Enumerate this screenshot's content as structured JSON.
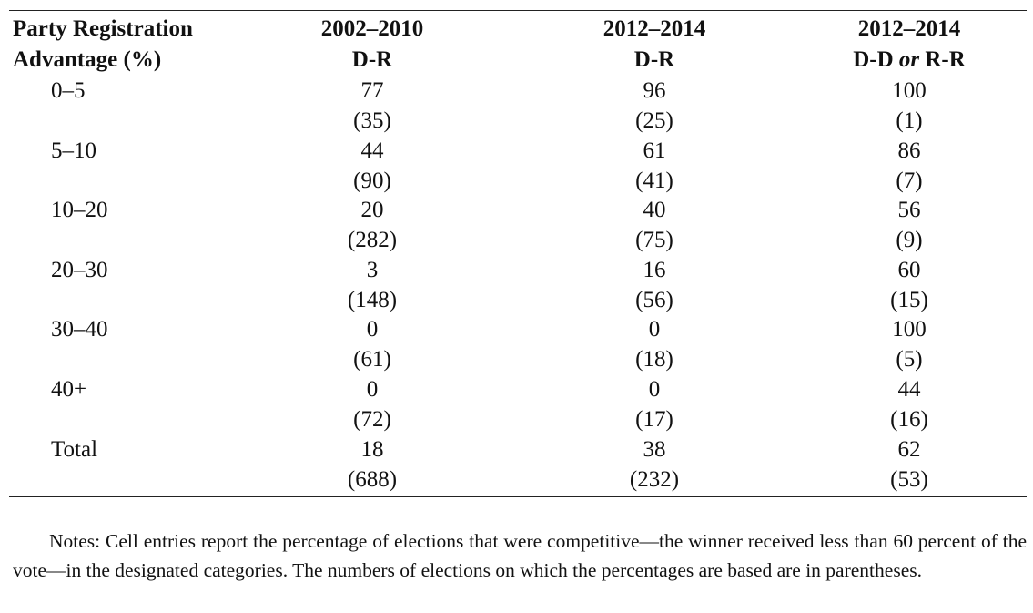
{
  "table": {
    "header": {
      "label_line1": "Party Registration",
      "label_line2": "Advantage (%)",
      "columns": [
        {
          "line1": "2002–2010",
          "line2": "D-R"
        },
        {
          "line1": "2012–2014",
          "line2": "D-R"
        },
        {
          "line1": "2012–2014",
          "line2_a": "D-D ",
          "line2_or": "or",
          "line2_b": " R-R"
        }
      ]
    },
    "rows": [
      {
        "category": "0–5",
        "values": [
          "77",
          "96",
          "100"
        ],
        "counts": [
          "(35)",
          "(25)",
          "(1)"
        ]
      },
      {
        "category": "5–10",
        "values": [
          "44",
          "61",
          "86"
        ],
        "counts": [
          "(90)",
          "(41)",
          "(7)"
        ]
      },
      {
        "category": "10–20",
        "values": [
          "20",
          "40",
          "56"
        ],
        "counts": [
          "(282)",
          "(75)",
          "(9)"
        ]
      },
      {
        "category": "20–30",
        "values": [
          "3",
          "16",
          "60"
        ],
        "counts": [
          "(148)",
          "(56)",
          "(15)"
        ]
      },
      {
        "category": "30–40",
        "values": [
          "0",
          "0",
          "100"
        ],
        "counts": [
          "(61)",
          "(18)",
          "(5)"
        ]
      },
      {
        "category": "40+",
        "values": [
          "0",
          "0",
          "44"
        ],
        "counts": [
          "(72)",
          "(17)",
          "(16)"
        ]
      },
      {
        "category": "Total",
        "values": [
          "18",
          "38",
          "62"
        ],
        "counts": [
          "(688)",
          "(232)",
          "(53)"
        ]
      }
    ]
  },
  "notes": "Notes: Cell entries report the percentage of elections that were competitive—the winner received less than 60 percent of the vote—in the designated categories. The numbers of elections on which the percentages are based are in parentheses."
}
